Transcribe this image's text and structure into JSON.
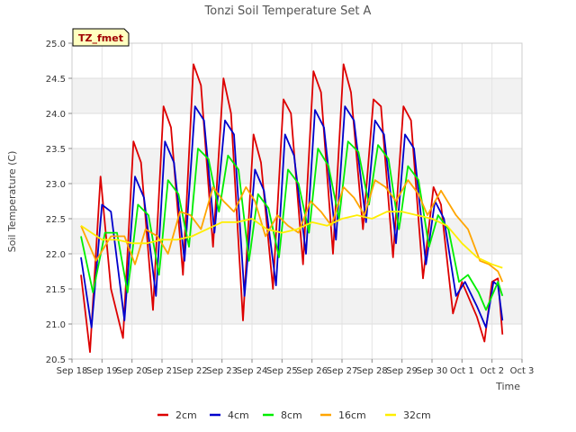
{
  "chart_data": {
    "type": "line",
    "title": "Tonzi Soil Temperature Set A",
    "xlabel": "Time",
    "ylabel": "Soil Temperature (C)",
    "badge": "TZ_fmet",
    "xlim": [
      0,
      15
    ],
    "ylim": [
      20.5,
      25.0
    ],
    "yticks": [
      20.5,
      21.0,
      21.5,
      22.0,
      22.5,
      23.0,
      23.5,
      24.0,
      24.5,
      25.0
    ],
    "yticklabels": [
      "20.5",
      "21.0",
      "21.5",
      "22.0",
      "22.5",
      "23.0",
      "23.5",
      "24.0",
      "24.5",
      "25.0"
    ],
    "xticks": [
      0,
      1,
      2,
      3,
      4,
      5,
      6,
      7,
      8,
      9,
      10,
      11,
      12,
      13,
      14,
      15
    ],
    "xticklabels": [
      "Sep 18",
      "Sep 19",
      "Sep 20",
      "Sep 21",
      "Sep 22",
      "Sep 23",
      "Sep 24",
      "Sep 25",
      "Sep 26",
      "Sep 27",
      "Sep 28",
      "Sep 29",
      "Sep 30",
      "Oct 1",
      "Oct 2",
      "Oct 3"
    ],
    "grid": true,
    "legend_position": "bottom",
    "x_note": "x values are days after Sep 18 00:00",
    "series": [
      {
        "name": "2cm",
        "color": "#dd0000",
        "x": [
          0.3,
          0.6,
          0.95,
          1.3,
          1.7,
          2.05,
          2.3,
          2.7,
          3.05,
          3.3,
          3.7,
          4.05,
          4.3,
          4.7,
          5.05,
          5.3,
          5.7,
          6.05,
          6.3,
          6.7,
          7.05,
          7.3,
          7.7,
          8.05,
          8.3,
          8.7,
          9.05,
          9.3,
          9.7,
          10.05,
          10.3,
          10.7,
          11.05,
          11.3,
          11.7,
          12.05,
          12.3,
          12.7,
          13.0,
          13.5,
          13.75,
          14.0,
          14.2,
          14.35
        ],
        "y": [
          21.7,
          20.6,
          23.1,
          21.5,
          20.8,
          23.6,
          23.3,
          21.2,
          24.1,
          23.8,
          21.7,
          24.7,
          24.4,
          22.1,
          24.5,
          24.0,
          21.05,
          23.7,
          23.3,
          21.5,
          24.2,
          24.0,
          21.85,
          24.6,
          24.3,
          22.0,
          24.7,
          24.3,
          22.35,
          24.2,
          24.1,
          21.95,
          24.1,
          23.9,
          21.65,
          22.95,
          22.7,
          21.15,
          21.6,
          21.1,
          20.75,
          21.6,
          21.65,
          20.85
        ]
      },
      {
        "name": "4cm",
        "color": "#0000cc",
        "x": [
          0.3,
          0.65,
          1.0,
          1.3,
          1.75,
          2.1,
          2.4,
          2.8,
          3.1,
          3.4,
          3.75,
          4.1,
          4.4,
          4.75,
          5.1,
          5.4,
          5.75,
          6.1,
          6.4,
          6.8,
          7.1,
          7.4,
          7.8,
          8.1,
          8.4,
          8.8,
          9.1,
          9.4,
          9.8,
          10.1,
          10.4,
          10.8,
          11.1,
          11.4,
          11.8,
          12.1,
          12.4,
          12.8,
          13.1,
          13.5,
          13.8,
          14.05,
          14.2,
          14.35
        ],
        "y": [
          21.95,
          20.95,
          22.7,
          22.6,
          21.05,
          23.1,
          22.8,
          21.4,
          23.6,
          23.3,
          21.9,
          24.1,
          23.9,
          22.3,
          23.9,
          23.7,
          21.4,
          23.2,
          22.9,
          21.55,
          23.7,
          23.4,
          22.0,
          24.05,
          23.8,
          22.2,
          24.1,
          23.9,
          22.45,
          23.9,
          23.7,
          22.15,
          23.7,
          23.5,
          21.85,
          22.75,
          22.5,
          21.4,
          21.6,
          21.25,
          20.95,
          21.6,
          21.55,
          21.05
        ]
      },
      {
        "name": "8cm",
        "color": "#00ee00",
        "x": [
          0.3,
          0.7,
          1.1,
          1.5,
          1.85,
          2.2,
          2.55,
          2.9,
          3.2,
          3.55,
          3.9,
          4.2,
          4.55,
          4.9,
          5.2,
          5.55,
          5.9,
          6.2,
          6.55,
          6.9,
          7.2,
          7.55,
          7.9,
          8.2,
          8.55,
          8.9,
          9.2,
          9.55,
          9.9,
          10.2,
          10.55,
          10.9,
          11.2,
          11.55,
          11.9,
          12.2,
          12.55,
          12.9,
          13.2,
          13.55,
          13.8,
          14.05,
          14.2,
          14.35
        ],
        "y": [
          22.25,
          21.45,
          22.3,
          22.3,
          21.45,
          22.7,
          22.55,
          21.7,
          23.05,
          22.85,
          22.1,
          23.5,
          23.35,
          22.6,
          23.4,
          23.2,
          21.9,
          22.85,
          22.65,
          21.95,
          23.2,
          23.0,
          22.3,
          23.5,
          23.25,
          22.5,
          23.6,
          23.45,
          22.7,
          23.55,
          23.35,
          22.35,
          23.25,
          23.05,
          22.1,
          22.55,
          22.35,
          21.6,
          21.7,
          21.45,
          21.2,
          21.45,
          21.6,
          21.4
        ]
      },
      {
        "name": "16cm",
        "color": "#ffa500",
        "x": [
          0.3,
          0.8,
          1.3,
          1.75,
          2.1,
          2.45,
          2.85,
          3.2,
          3.6,
          3.95,
          4.3,
          4.7,
          5.05,
          5.4,
          5.8,
          6.1,
          6.45,
          6.85,
          7.2,
          7.55,
          7.95,
          8.3,
          8.65,
          9.05,
          9.4,
          9.75,
          10.1,
          10.45,
          10.8,
          11.2,
          11.55,
          11.85,
          12.3,
          12.8,
          13.2,
          13.6,
          13.9,
          14.2,
          14.35
        ],
        "y": [
          22.4,
          21.9,
          22.25,
          22.25,
          21.85,
          22.35,
          22.25,
          22.0,
          22.6,
          22.55,
          22.35,
          22.95,
          22.75,
          22.6,
          22.95,
          22.75,
          22.25,
          22.55,
          22.4,
          22.3,
          22.75,
          22.6,
          22.4,
          22.95,
          22.8,
          22.55,
          23.05,
          22.95,
          22.75,
          23.05,
          22.85,
          22.55,
          22.9,
          22.55,
          22.35,
          21.9,
          21.85,
          21.75,
          21.6
        ]
      },
      {
        "name": "32cm",
        "color": "#ffee00",
        "x": [
          0.3,
          1.0,
          1.5,
          2.0,
          2.5,
          3.0,
          3.5,
          4.0,
          4.5,
          5.0,
          5.5,
          6.0,
          6.5,
          7.0,
          7.5,
          8.0,
          8.5,
          9.0,
          9.5,
          10.0,
          10.5,
          11.0,
          11.5,
          12.0,
          12.5,
          13.0,
          13.5,
          14.0,
          14.35
        ],
        "y": [
          22.4,
          22.2,
          22.2,
          22.15,
          22.15,
          22.2,
          22.2,
          22.25,
          22.35,
          22.45,
          22.45,
          22.5,
          22.35,
          22.3,
          22.35,
          22.45,
          22.4,
          22.5,
          22.55,
          22.5,
          22.6,
          22.6,
          22.55,
          22.5,
          22.4,
          22.15,
          21.95,
          21.85,
          21.8
        ]
      }
    ]
  }
}
